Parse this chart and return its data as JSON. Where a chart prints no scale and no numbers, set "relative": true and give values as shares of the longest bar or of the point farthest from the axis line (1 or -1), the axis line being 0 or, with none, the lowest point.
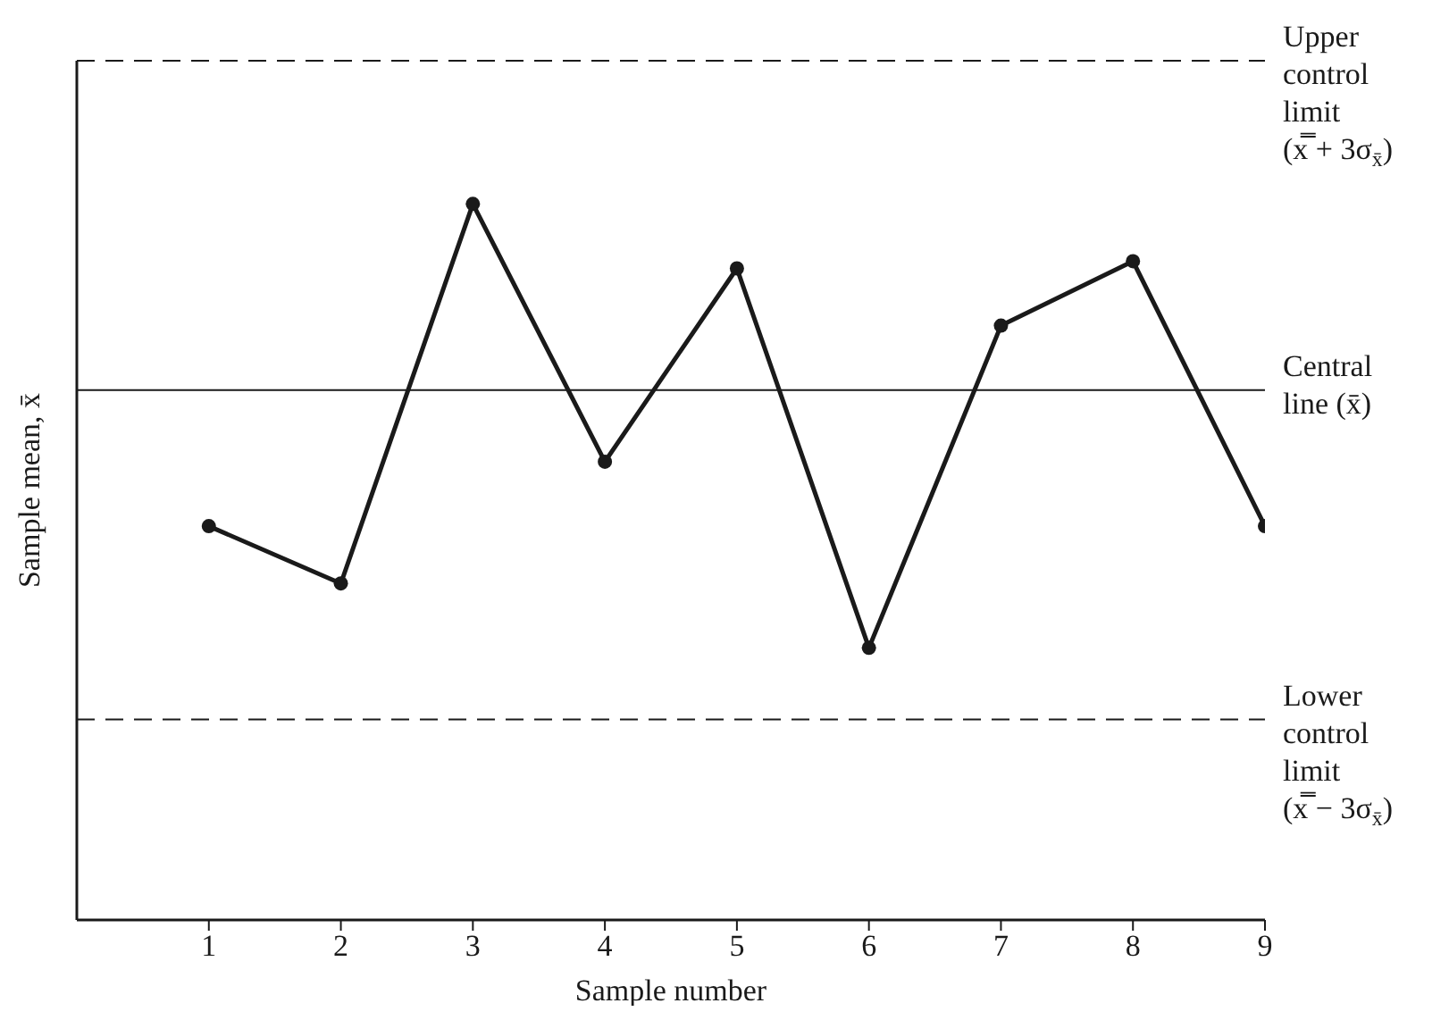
{
  "chart_data": {
    "type": "line",
    "relative": true,
    "xlabel": "Sample number",
    "ylabel": "Sample mean, x̄",
    "x": [
      1,
      2,
      3,
      4,
      5,
      6,
      7,
      8,
      9
    ],
    "series": [
      {
        "color": "#1a1a1a",
        "values": [
          0.55,
          0.47,
          1,
          0.64,
          0.91,
          0.38,
          0.83,
          0.92,
          0.55
        ]
      }
    ],
    "xlim": [
      0,
      9
    ],
    "xticks": [
      1,
      2,
      3,
      4,
      5,
      6,
      7,
      8,
      9
    ],
    "marker": "circle",
    "line_style": "solid",
    "grid": false,
    "legend": false,
    "ref_lines": [
      {
        "axis": "y",
        "value": 1.2,
        "label": "Upper control limit (x̿ + 3σ$_{x̄}$)",
        "color": "#1a1a1a",
        "line_style": "dashed"
      },
      {
        "axis": "y",
        "value": 0.74,
        "label": "Central line (x̄)",
        "color": "#1a1a1a",
        "line_style": "solid"
      },
      {
        "axis": "y",
        "value": 0.28,
        "label": "Lower control limit (x̿ − 3σ$_{x̄}$)",
        "color": "#1a1a1a",
        "line_style": "dashed"
      }
    ]
  }
}
